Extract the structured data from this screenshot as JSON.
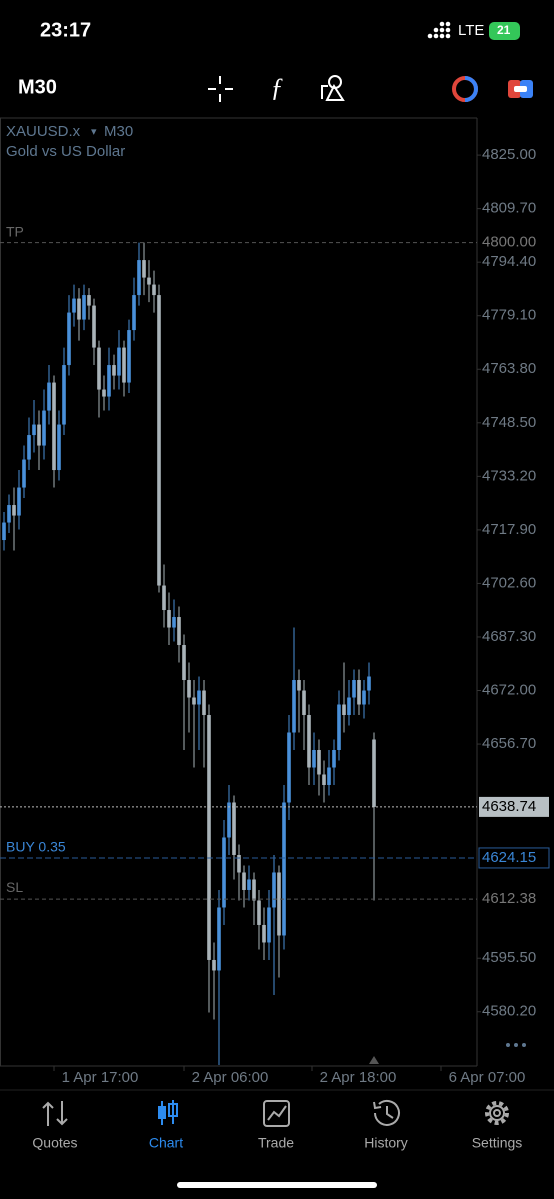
{
  "status_bar": {
    "time": "23:17",
    "network": "LTE",
    "battery": "21"
  },
  "toolbar": {
    "timeframe": "M30"
  },
  "nav": {
    "items": [
      "Quotes",
      "Chart",
      "Trade",
      "History",
      "Settings"
    ],
    "active": 1
  },
  "chart_data": {
    "type": "candlestick",
    "symbol": "XAUUSD.x",
    "timeframe": "M30",
    "description": "Gold vs US Dollar",
    "bull_color": "#4a90d9",
    "bear_color": "#a9b3b9",
    "open": [
      4715,
      4720,
      4725,
      4722,
      4730,
      4738,
      4745,
      4748,
      4742,
      4752,
      4760,
      4735,
      4748,
      4765,
      4780,
      4784,
      4778,
      4785,
      4782,
      4770,
      4758,
      4756,
      4765,
      4762,
      4770,
      4760,
      4775,
      4785,
      4795,
      4790,
      4788,
      4785,
      4702,
      4695,
      4690,
      4693,
      4685,
      4675,
      4670,
      4668,
      4672,
      4665,
      4595,
      4592,
      4610,
      4630,
      4640,
      4625,
      4620,
      4615,
      4618,
      4612,
      4605,
      4600,
      4610,
      4620,
      4602,
      4640,
      4660,
      4675,
      4672,
      4665,
      4650,
      4655,
      4648,
      4645,
      4650,
      4655,
      4668,
      4665,
      4670,
      4675,
      4668,
      4672,
      4658
    ],
    "high": [
      4723,
      4728,
      4730,
      4735,
      4742,
      4750,
      4755,
      4752,
      4758,
      4765,
      4762,
      4752,
      4770,
      4785,
      4788,
      4787,
      4788,
      4787,
      4784,
      4772,
      4762,
      4770,
      4768,
      4775,
      4772,
      4778,
      4790,
      4800,
      4800,
      4795,
      4792,
      4788,
      4708,
      4700,
      4698,
      4696,
      4688,
      4680,
      4675,
      4676,
      4675,
      4668,
      4600,
      4615,
      4635,
      4645,
      4642,
      4628,
      4622,
      4622,
      4620,
      4615,
      4610,
      4615,
      4625,
      4622,
      4645,
      4665,
      4690,
      4678,
      4675,
      4668,
      4660,
      4658,
      4652,
      4655,
      4658,
      4672,
      4680,
      4675,
      4678,
      4678,
      4675,
      4680,
      4660
    ],
    "low": [
      4712,
      4717,
      4712,
      4718,
      4727,
      4735,
      4740,
      4735,
      4738,
      4748,
      4730,
      4732,
      4745,
      4762,
      4776,
      4772,
      4775,
      4778,
      4765,
      4750,
      4752,
      4752,
      4758,
      4758,
      4756,
      4757,
      4772,
      4782,
      4785,
      4783,
      4780,
      4700,
      4690,
      4685,
      4686,
      4680,
      4655,
      4660,
      4650,
      4655,
      4650,
      4580,
      4578,
      4565,
      4605,
      4625,
      4618,
      4612,
      4610,
      4612,
      4605,
      4598,
      4595,
      4595,
      4585,
      4590,
      4598,
      4635,
      4655,
      4660,
      4655,
      4645,
      4645,
      4642,
      4640,
      4642,
      4645,
      4652,
      4660,
      4662,
      4665,
      4665,
      4664,
      4668,
      4612
    ],
    "close": [
      4720,
      4725,
      4722,
      4730,
      4738,
      4745,
      4748,
      4742,
      4752,
      4760,
      4735,
      4748,
      4765,
      4780,
      4784,
      4778,
      4785,
      4782,
      4770,
      4758,
      4756,
      4765,
      4762,
      4770,
      4760,
      4775,
      4785,
      4795,
      4790,
      4788,
      4785,
      4702,
      4695,
      4690,
      4693,
      4685,
      4675,
      4670,
      4668,
      4672,
      4665,
      4595,
      4592,
      4610,
      4630,
      4640,
      4625,
      4620,
      4615,
      4618,
      4612,
      4605,
      4600,
      4610,
      4620,
      4602,
      4640,
      4660,
      4675,
      4672,
      4665,
      4650,
      4655,
      4648,
      4645,
      4650,
      4655,
      4668,
      4665,
      4670,
      4675,
      4668,
      4672,
      4676,
      4638.74
    ],
    "ylim": [
      4564.7,
      4835.6
    ],
    "yticks": [
      {
        "value": 4825,
        "label": "4825.00"
      },
      {
        "value": 4809.7,
        "label": "4809.70"
      },
      {
        "value": 4794.4,
        "label": "4794.40"
      },
      {
        "value": 4779.1,
        "label": "4779.10"
      },
      {
        "value": 4763.8,
        "label": "4763.80"
      },
      {
        "value": 4748.5,
        "label": "4748.50"
      },
      {
        "value": 4733.2,
        "label": "4733.20"
      },
      {
        "value": 4717.9,
        "label": "4717.90"
      },
      {
        "value": 4702.6,
        "label": "4702.60"
      },
      {
        "value": 4687.3,
        "label": "4687.30"
      },
      {
        "value": 4672,
        "label": "4672.00"
      },
      {
        "value": 4656.7,
        "label": "4656.70"
      },
      {
        "value": 4595.5,
        "label": "4595.50"
      },
      {
        "value": 4580.2,
        "label": "4580.20"
      }
    ],
    "x_labels": [
      "1 Apr 17:00",
      "2 Apr 06:00",
      "2 Apr 18:00",
      "6 Apr 07:00"
    ],
    "tp": {
      "name": "TP",
      "price": {
        "value": 4800,
        "label": "4800.00"
      }
    },
    "buy": {
      "name": "BUY 0.35",
      "price": 4624.15
    },
    "sl": {
      "name": "SL",
      "price": 4612.38
    },
    "current_price": 4638.74
  }
}
